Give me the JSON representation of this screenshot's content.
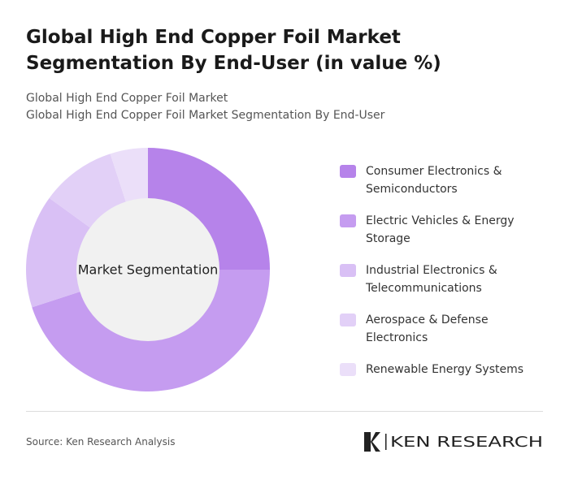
{
  "chart_data": {
    "type": "donut",
    "title": "Global High End Copper Foil Market Segmentation By End-User (in value %)",
    "subtitle": [
      "Global High End Copper Foil Market",
      "Global High End Copper Foil Market Segmentation By End-User"
    ],
    "center_label": "Market Segmentation",
    "categories": [
      "Consumer Electronics & Semiconductors",
      "Electric Vehicles & Energy Storage",
      "Industrial Electronics & Telecommunications",
      "Aerospace & Defense Electronics",
      "Renewable Energy Systems"
    ],
    "values": [
      25,
      45,
      15,
      10,
      5
    ],
    "colors": [
      "#b683ea",
      "#c59cf0",
      "#d9c0f5",
      "#e2d0f7",
      "#ebdff9"
    ],
    "source": "Source: Ken Research Analysis",
    "logo": "KEN RESEARCH"
  }
}
